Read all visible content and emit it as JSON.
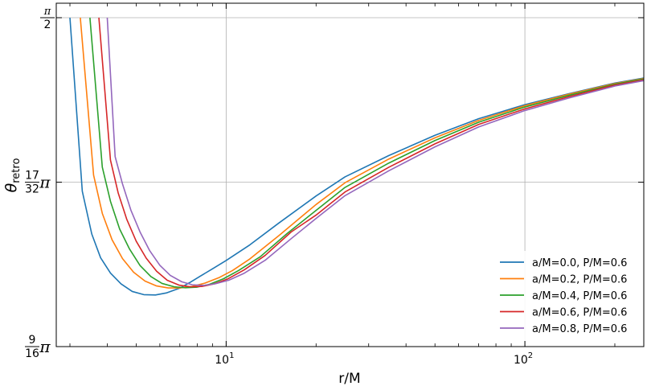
{
  "chart_data": {
    "type": "line",
    "xlabel": "r/M",
    "ylabel": {
      "main": "θ",
      "sub": "retro"
    },
    "xscale": "log",
    "xlim": [
      2.7,
      250
    ],
    "ylim": [
      1.7671,
      1.5708
    ],
    "grid": true,
    "legend_position": "lower-right",
    "x_ticks": [
      {
        "value": 10,
        "base": "10",
        "exp": "1"
      },
      {
        "value": 100,
        "base": "10",
        "exp": "2"
      }
    ],
    "y_ticks": [
      {
        "value": 1.5708,
        "num": "π",
        "den": "2",
        "suffix": ""
      },
      {
        "value": 1.669,
        "num": "17",
        "den": "32",
        "suffix": "π"
      },
      {
        "value": 1.7671,
        "num": "9",
        "den": "16",
        "suffix": "π"
      }
    ],
    "series": [
      {
        "name": "a/M=0.0, P/M=0.6",
        "color": "#1f77b4",
        "x": [
          3.0,
          3.3,
          3.55,
          3.8,
          4.1,
          4.45,
          4.85,
          5.3,
          5.8,
          6.3,
          7.0,
          7.6,
          8.2,
          9.0,
          10,
          12,
          15,
          20,
          25,
          35,
          50,
          70,
          100,
          140,
          200,
          250
        ],
        "y": [
          1.5708,
          1.6744,
          1.6999,
          1.7141,
          1.7232,
          1.7297,
          1.7342,
          1.7361,
          1.7363,
          1.7351,
          1.7322,
          1.7286,
          1.725,
          1.7207,
          1.7157,
          1.7064,
          1.6934,
          1.6772,
          1.6658,
          1.6531,
          1.641,
          1.6311,
          1.6227,
          1.6162,
          1.6098,
          1.6068
        ]
      },
      {
        "name": "a/M=0.2, P/M=0.6",
        "color": "#ff7f0e",
        "x": [
          3.25,
          3.6,
          3.85,
          4.15,
          4.5,
          4.9,
          5.35,
          5.85,
          6.4,
          7.0,
          7.7,
          8.5,
          9.5,
          10.5,
          12,
          15,
          20,
          25,
          35,
          50,
          70,
          100,
          140,
          200,
          250
        ],
        "y": [
          1.5708,
          1.6647,
          1.6876,
          1.7033,
          1.7146,
          1.7227,
          1.728,
          1.7309,
          1.7321,
          1.7321,
          1.7312,
          1.7292,
          1.7258,
          1.7217,
          1.7148,
          1.7009,
          1.6823,
          1.6693,
          1.6552,
          1.6425,
          1.6321,
          1.6233,
          1.6165,
          1.6101,
          1.6071
        ]
      },
      {
        "name": "a/M=0.4, P/M=0.6",
        "color": "#2ca02c",
        "x": [
          3.5,
          3.85,
          4.1,
          4.4,
          4.75,
          5.15,
          5.6,
          6.1,
          6.7,
          7.3,
          8.0,
          8.8,
          9.8,
          11,
          13,
          16,
          20,
          25,
          35,
          50,
          70,
          100,
          140,
          200,
          250
        ],
        "y": [
          1.5708,
          1.66,
          1.6804,
          1.6969,
          1.7089,
          1.7187,
          1.7253,
          1.7294,
          1.7314,
          1.732,
          1.7316,
          1.7299,
          1.7266,
          1.7217,
          1.7135,
          1.6996,
          1.6858,
          1.6721,
          1.6576,
          1.6441,
          1.6332,
          1.6241,
          1.6172,
          1.6105,
          1.6074
        ]
      },
      {
        "name": "a/M=0.6, P/M=0.6",
        "color": "#d62728",
        "x": [
          3.75,
          4.1,
          4.35,
          4.65,
          5.0,
          5.4,
          5.85,
          6.35,
          6.95,
          7.6,
          8.3,
          9.1,
          10.1,
          11.5,
          13.5,
          16.5,
          20,
          25,
          35,
          50,
          70,
          100,
          140,
          200,
          250
        ],
        "y": [
          1.5708,
          1.6558,
          1.6753,
          1.6912,
          1.7042,
          1.7143,
          1.7221,
          1.7275,
          1.7304,
          1.7314,
          1.7312,
          1.7297,
          1.7268,
          1.7213,
          1.7127,
          1.6987,
          1.6886,
          1.6748,
          1.6601,
          1.6461,
          1.6345,
          1.6252,
          1.618,
          1.611,
          1.6079
        ]
      },
      {
        "name": "a/M=0.8, P/M=0.6",
        "color": "#9467bd",
        "x": [
          4.0,
          4.25,
          4.5,
          4.8,
          5.15,
          5.55,
          6.0,
          6.5,
          7.1,
          7.7,
          8.4,
          9.2,
          10.2,
          11.5,
          13.5,
          16.5,
          20,
          25,
          35,
          50,
          70,
          100,
          140,
          200,
          250
        ],
        "y": [
          1.5708,
          1.6537,
          1.6701,
          1.6857,
          1.6987,
          1.7099,
          1.7186,
          1.7246,
          1.7284,
          1.7302,
          1.7306,
          1.7296,
          1.7275,
          1.7233,
          1.7156,
          1.7027,
          1.6906,
          1.677,
          1.6622,
          1.6479,
          1.636,
          1.6262,
          1.6188,
          1.6116,
          1.6084
        ]
      }
    ]
  }
}
